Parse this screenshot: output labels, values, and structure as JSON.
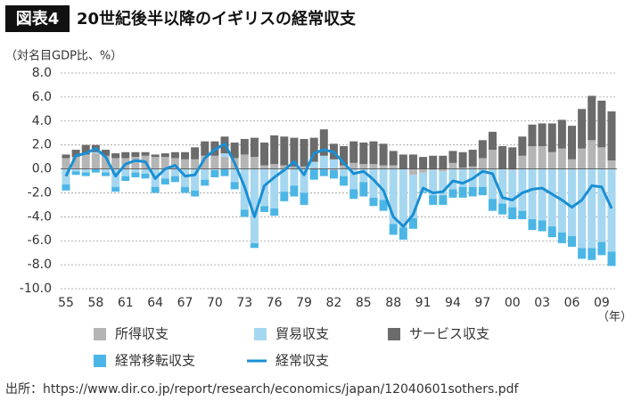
{
  "chart_data": {
    "type": "bar",
    "label": "図表4",
    "title": "20世紀後半以降のイギリスの経常収支",
    "y_axis_label": "（対名目GDP比、%）",
    "x_axis_label": "（年）",
    "source": "出所：https://www.dir.co.jp/report/research/economics/japan/12040601sothers.pdf",
    "categories": [
      "55",
      null,
      null,
      "58",
      null,
      null,
      "61",
      null,
      null,
      "64",
      null,
      null,
      "67",
      null,
      null,
      "70",
      null,
      null,
      "73",
      null,
      null,
      "76",
      null,
      null,
      "79",
      null,
      null,
      "82",
      null,
      null,
      "85",
      null,
      null,
      "88",
      null,
      null,
      "91",
      null,
      null,
      "94",
      null,
      null,
      "97",
      null,
      null,
      "00",
      null,
      null,
      "03",
      null,
      null,
      "06",
      null,
      null,
      "09",
      null
    ],
    "ylim": [
      -10,
      8
    ],
    "yticks": [
      {
        "value": -10,
        "label": "-10.0"
      },
      {
        "value": -8,
        "label": "-8.0"
      },
      {
        "value": -6,
        "label": "-6.0"
      },
      {
        "value": -4,
        "label": "-4.0"
      },
      {
        "value": -2,
        "label": "-2.0"
      },
      {
        "value": 0,
        "label": "0.0"
      },
      {
        "value": 2,
        "label": "2.0"
      },
      {
        "value": 4,
        "label": "4.0"
      },
      {
        "value": 6,
        "label": "6.0"
      },
      {
        "value": 8,
        "label": "8.0"
      }
    ],
    "grid": true,
    "series": [
      {
        "name": "所得収支",
        "color": "#b5b5b5",
        "values": [
          0.9,
          1.0,
          1.2,
          1.3,
          1.1,
          0.9,
          0.9,
          1.0,
          1.1,
          1.0,
          1.0,
          0.9,
          0.8,
          0.8,
          1.1,
          1.1,
          1.0,
          0.9,
          1.2,
          1.0,
          0.3,
          0.4,
          0.3,
          0.2,
          0.2,
          0.1,
          0.0,
          -0.1,
          0.3,
          0.5,
          0.4,
          0.4,
          0.3,
          0.3,
          0.0,
          -0.5,
          -0.3,
          -0.1,
          -0.2,
          0.5,
          0.1,
          0.2,
          0.9,
          1.6,
          0.0,
          -0.1,
          1.1,
          1.9,
          1.9,
          1.4,
          1.7,
          0.8,
          1.7,
          2.4,
          1.8,
          0.7
        ]
      },
      {
        "name": "貿易収支",
        "color": "#a6d7f0",
        "values": [
          -1.3,
          -0.2,
          -0.3,
          0.1,
          -0.3,
          -1.5,
          -0.6,
          -0.3,
          -0.4,
          -1.5,
          -0.8,
          -0.6,
          -1.5,
          -1.8,
          -0.9,
          -0.1,
          0.3,
          -1.1,
          -3.4,
          -6.2,
          -3.1,
          -3.3,
          -1.9,
          -1.4,
          -2.0,
          0.5,
          1.1,
          0.8,
          -0.6,
          -1.7,
          -1.1,
          -2.4,
          -2.6,
          -4.6,
          -4.9,
          -3.6,
          -1.6,
          -2.1,
          -2.0,
          -1.7,
          -1.5,
          -1.5,
          -1.5,
          -2.5,
          -2.9,
          -3.1,
          -3.5,
          -4.2,
          -4.3,
          -4.8,
          -5.3,
          -5.6,
          -6.6,
          -6.6,
          -6.1,
          -6.9
        ]
      },
      {
        "name": "サービス収支",
        "color": "#6b6b6b",
        "values": [
          0.3,
          0.6,
          0.8,
          0.6,
          0.5,
          0.4,
          0.5,
          0.4,
          0.3,
          0.2,
          0.3,
          0.5,
          0.6,
          1.0,
          1.2,
          1.2,
          1.4,
          1.3,
          1.3,
          1.6,
          1.9,
          2.4,
          2.4,
          2.4,
          2.3,
          2.0,
          2.2,
          1.3,
          1.6,
          1.8,
          1.8,
          1.9,
          1.8,
          1.2,
          1.2,
          1.2,
          1.0,
          1.1,
          1.1,
          1.0,
          1.3,
          1.4,
          1.5,
          1.5,
          1.9,
          1.8,
          1.6,
          1.8,
          1.9,
          2.4,
          2.4,
          2.8,
          3.3,
          3.7,
          3.9,
          4.1
        ]
      },
      {
        "name": "経常移転収支",
        "color": "#4bb6e6",
        "values": [
          -0.5,
          -0.3,
          -0.3,
          -0.3,
          -0.3,
          -0.4,
          -0.4,
          -0.4,
          -0.4,
          -0.5,
          -0.5,
          -0.5,
          -0.5,
          -0.5,
          -0.5,
          -0.6,
          -0.6,
          -0.6,
          -0.6,
          -0.4,
          -0.5,
          -0.6,
          -0.8,
          -0.9,
          -1.0,
          -0.9,
          -0.6,
          -0.7,
          -0.8,
          -0.8,
          -1.2,
          -0.7,
          -0.9,
          -0.9,
          -1.0,
          -0.9,
          -0.1,
          -0.8,
          -0.8,
          -0.7,
          -0.9,
          -0.8,
          -0.7,
          -1.0,
          -0.9,
          -1.0,
          -0.7,
          -0.9,
          -0.9,
          -0.9,
          -0.9,
          -0.9,
          -0.9,
          -1.0,
          -1.1,
          -1.2
        ]
      },
      {
        "name": "経常収支",
        "color": "#1a8fd3",
        "line": true,
        "values": [
          -0.6,
          1.1,
          1.3,
          1.7,
          1.0,
          -0.6,
          0.4,
          0.7,
          0.6,
          -0.8,
          0.0,
          0.3,
          -0.6,
          -0.5,
          0.9,
          1.6,
          2.1,
          0.5,
          -1.5,
          -4.0,
          -1.4,
          -0.7,
          -0.1,
          0.6,
          -0.5,
          1.3,
          1.6,
          1.4,
          0.5,
          -0.4,
          -0.2,
          -0.9,
          -1.8,
          -4.0,
          -4.8,
          -3.8,
          -1.6,
          -2.0,
          -1.9,
          -1.0,
          -1.2,
          -0.8,
          -0.2,
          -0.4,
          -2.4,
          -2.6,
          -2.0,
          -1.7,
          -1.6,
          -2.1,
          -2.6,
          -3.2,
          -2.6,
          -1.4,
          -1.5,
          -3.3
        ]
      }
    ]
  }
}
